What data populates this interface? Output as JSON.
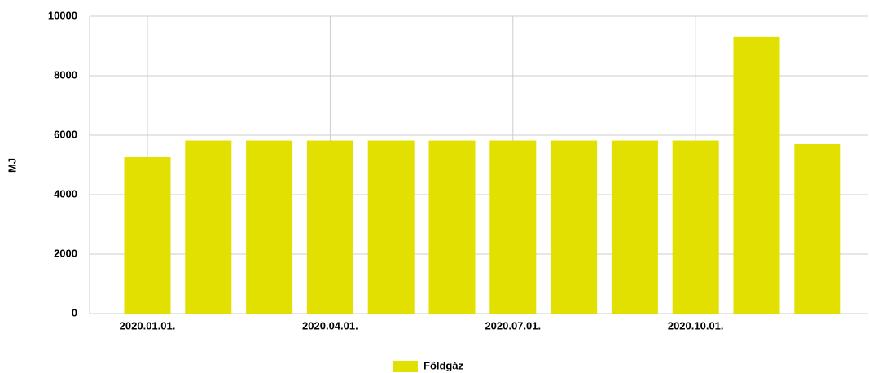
{
  "chart_data": {
    "type": "bar",
    "categories": [
      "2020.01.01.",
      null,
      null,
      "2020.04.01.",
      null,
      null,
      "2020.07.01.",
      null,
      null,
      "2020.10.01.",
      null,
      null
    ],
    "series": [
      {
        "name": "Földgáz",
        "color": "#e2e000",
        "values": [
          5260,
          5820,
          5820,
          5820,
          5820,
          5820,
          5820,
          5820,
          5820,
          5820,
          9320,
          5700
        ]
      }
    ],
    "ylabel": "MJ",
    "ylim": [
      0,
      10000
    ],
    "yticks": [
      0,
      2000,
      4000,
      6000,
      8000,
      10000
    ],
    "grid": true,
    "legend": "bottom"
  }
}
